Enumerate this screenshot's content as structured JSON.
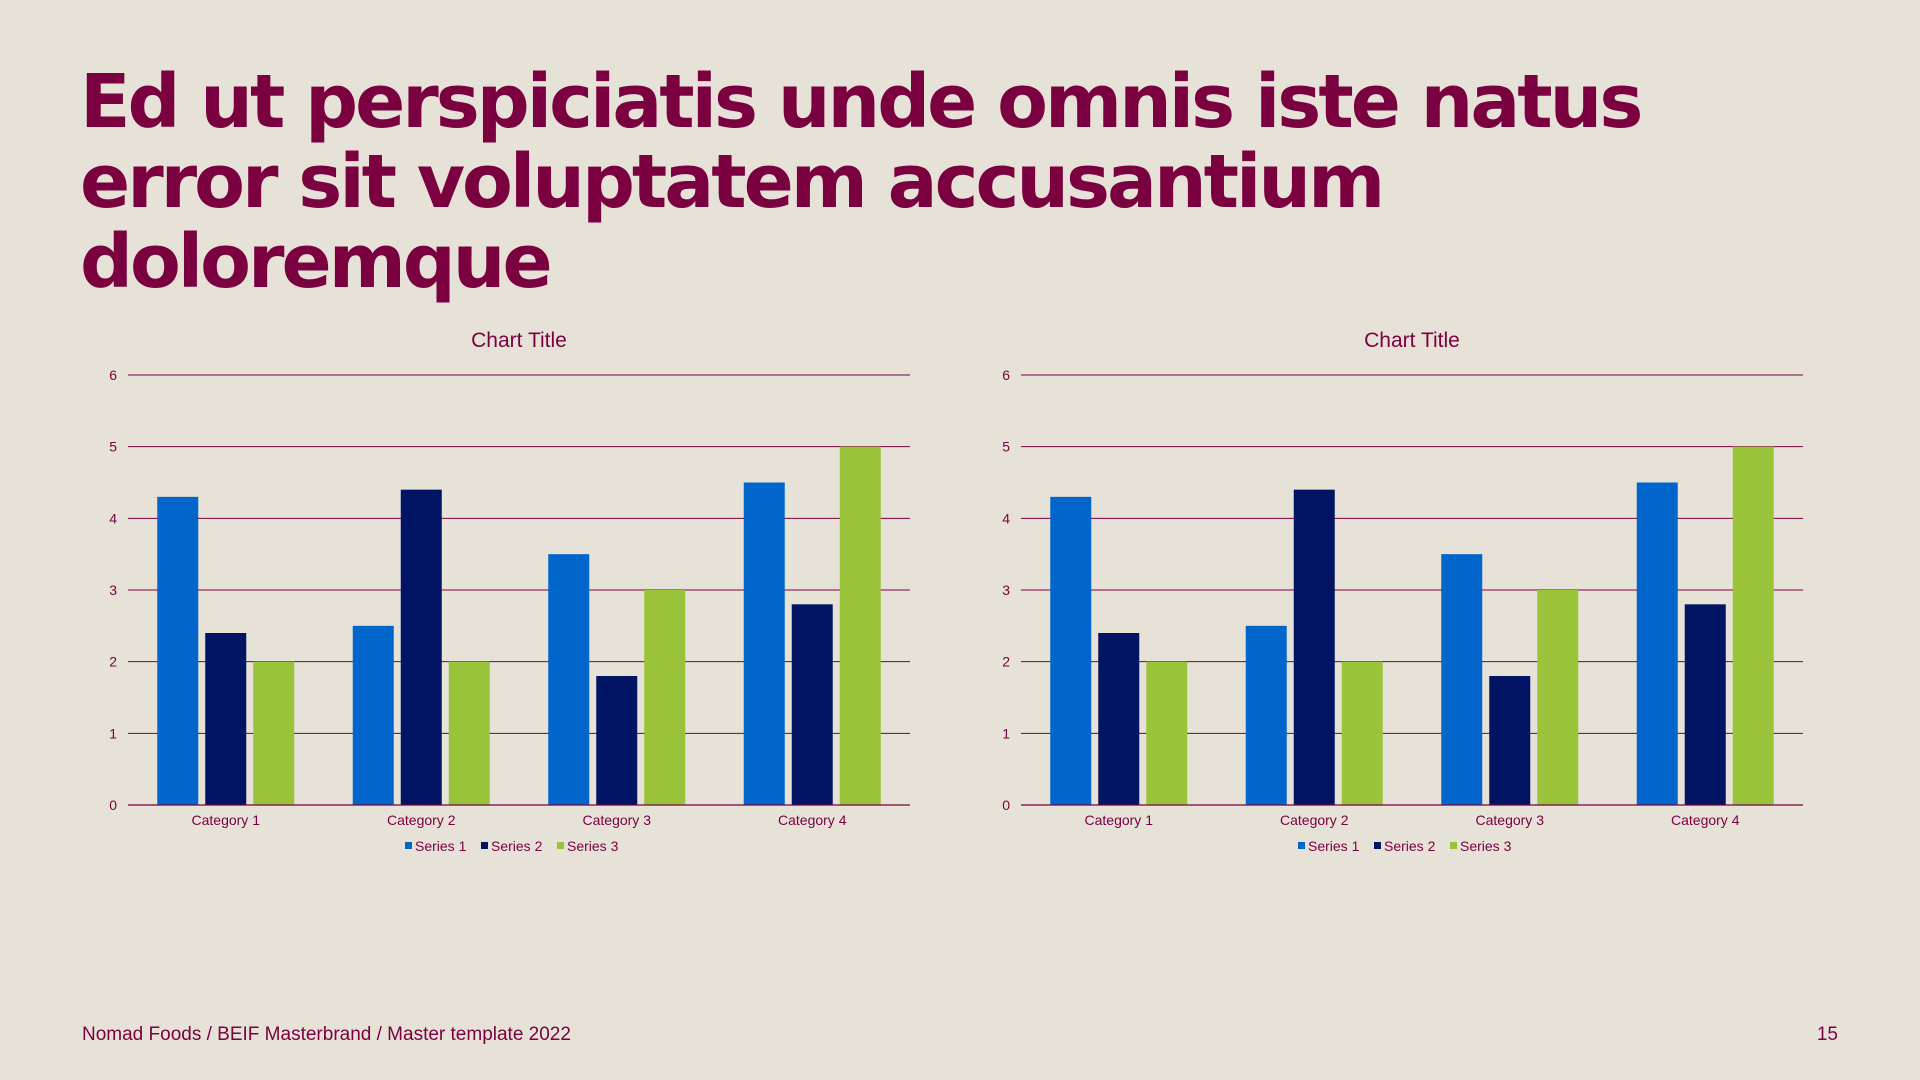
{
  "slide": {
    "title": "Ed ut perspiciatis unde omnis iste natus error sit voluptatem accusantium doloremque",
    "footer": "Nomad Foods / BEIF Masterbrand / Master template 2022",
    "page_number": "15"
  },
  "colors": {
    "background": "#e6e2d8",
    "accent": "#7a0040",
    "series1": "#0066cc",
    "series2": "#001464",
    "series3": "#99c43a"
  },
  "chart_data": [
    {
      "type": "bar",
      "title": "Chart Title",
      "categories": [
        "Category 1",
        "Category 2",
        "Category 3",
        "Category 4"
      ],
      "series": [
        {
          "name": "Series 1",
          "values": [
            4.3,
            2.5,
            3.5,
            4.5
          ]
        },
        {
          "name": "Series 2",
          "values": [
            2.4,
            4.4,
            1.8,
            2.8
          ]
        },
        {
          "name": "Series 3",
          "values": [
            2,
            2,
            3,
            5
          ]
        }
      ],
      "ylim": [
        0,
        6
      ],
      "yticks": [
        "0",
        "1",
        "2",
        "3",
        "4",
        "5",
        "6"
      ],
      "grid": true,
      "legend": "bottom"
    },
    {
      "type": "bar",
      "title": "Chart Title",
      "categories": [
        "Category 1",
        "Category 2",
        "Category 3",
        "Category 4"
      ],
      "series": [
        {
          "name": "Series 1",
          "values": [
            4.3,
            2.5,
            3.5,
            4.5
          ]
        },
        {
          "name": "Series 2",
          "values": [
            2.4,
            4.4,
            1.8,
            2.8
          ]
        },
        {
          "name": "Series 3",
          "values": [
            2,
            2,
            3,
            5
          ]
        }
      ],
      "ylim": [
        0,
        6
      ],
      "yticks": [
        "0",
        "1",
        "2",
        "3",
        "4",
        "5",
        "6"
      ],
      "grid": true,
      "legend": "bottom"
    }
  ]
}
